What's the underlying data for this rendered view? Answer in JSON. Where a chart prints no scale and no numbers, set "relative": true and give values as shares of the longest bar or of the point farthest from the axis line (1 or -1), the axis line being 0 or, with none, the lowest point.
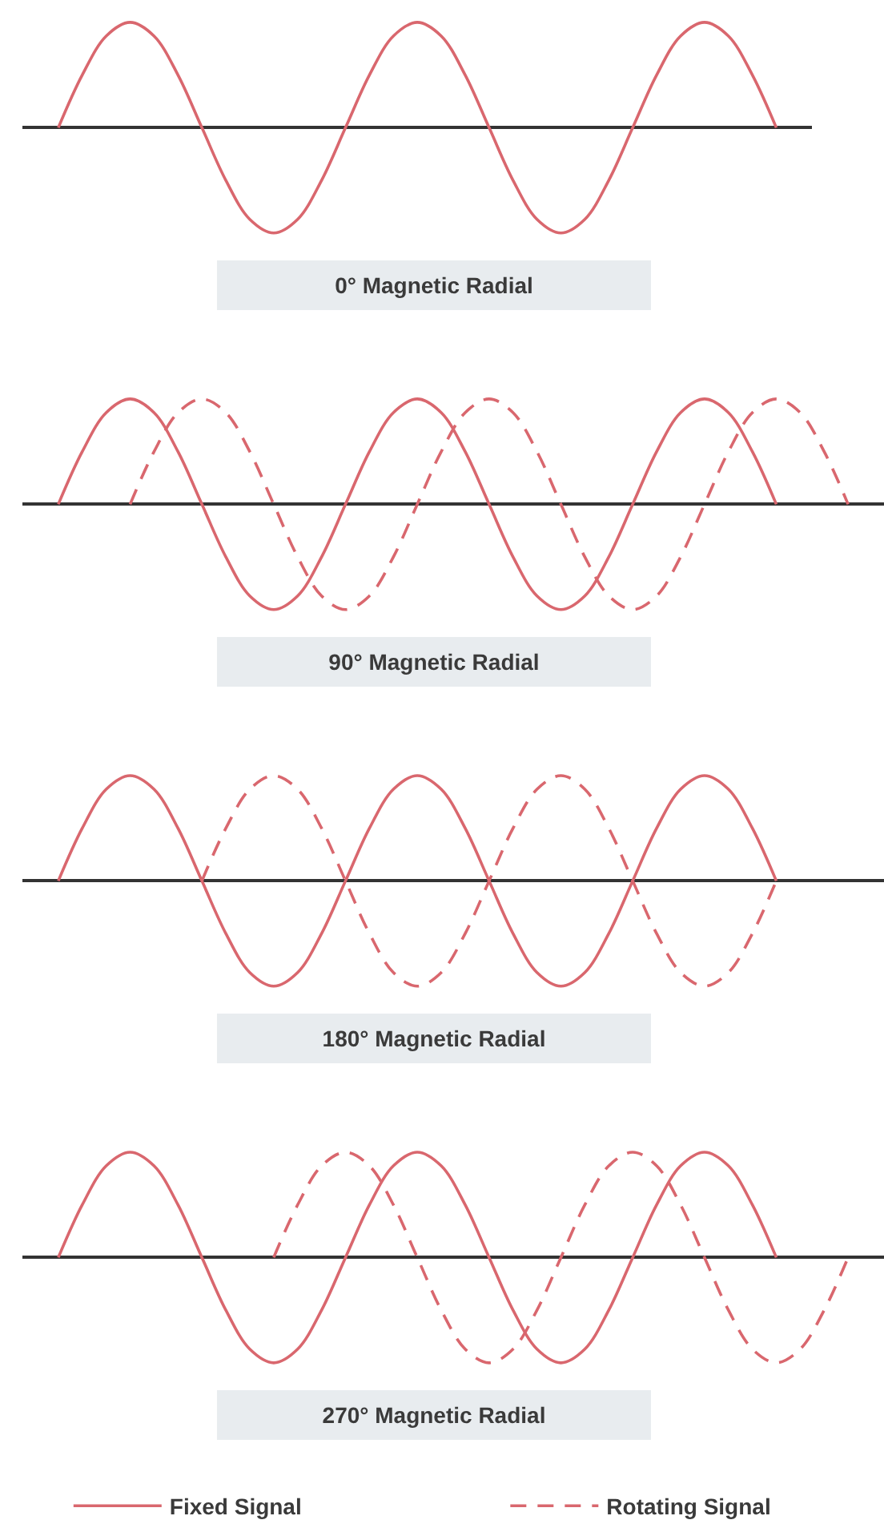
{
  "chart_data": [
    {
      "type": "line",
      "xlabel": "0° Magnetic Radial",
      "relative": true,
      "categories": [
        null,
        null,
        null,
        null,
        null,
        null,
        null,
        null,
        null,
        null,
        null,
        null,
        null,
        null,
        null,
        null,
        null,
        null,
        null,
        null,
        null,
        null,
        null,
        null,
        null,
        null,
        null,
        null,
        null,
        null,
        null
      ],
      "series": [
        {
          "color": "#d9676e",
          "line_style": "solid",
          "values": [
            0,
            0.5,
            0.87,
            1,
            0.87,
            0.5,
            0,
            -0.5,
            -0.87,
            -1,
            -0.87,
            -0.5,
            0,
            0.5,
            0.87,
            1,
            0.87,
            0.5,
            0,
            -0.5,
            -0.87,
            -1,
            -0.87,
            -0.5,
            0,
            0.5,
            0.87,
            1,
            0.87,
            0.5,
            0
          ]
        }
      ]
    },
    {
      "type": "line",
      "xlabel": "90° Magnetic Radial",
      "relative": true,
      "categories": [
        null,
        null,
        null,
        null,
        null,
        null,
        null,
        null,
        null,
        null,
        null,
        null,
        null,
        null,
        null,
        null,
        null,
        null,
        null,
        null,
        null,
        null,
        null,
        null,
        null,
        null,
        null,
        null,
        null,
        null,
        null,
        null,
        null,
        null
      ],
      "series": [
        {
          "color": "#d9676e",
          "line_style": "solid",
          "values": [
            0,
            0.5,
            0.87,
            1,
            0.87,
            0.5,
            0,
            -0.5,
            -0.87,
            -1,
            -0.87,
            -0.5,
            0,
            0.5,
            0.87,
            1,
            0.87,
            0.5,
            0,
            -0.5,
            -0.87,
            -1,
            -0.87,
            -0.5,
            0,
            0.5,
            0.87,
            1,
            0.87,
            0.5,
            0,
            null,
            null,
            null
          ]
        },
        {
          "color": "#d9676e",
          "line_style": "dashed",
          "values": [
            null,
            null,
            null,
            0,
            0.5,
            0.87,
            1,
            0.87,
            0.5,
            0,
            -0.5,
            -0.87,
            -1,
            -0.87,
            -0.5,
            0,
            0.5,
            0.87,
            1,
            0.87,
            0.5,
            0,
            -0.5,
            -0.87,
            -1,
            -0.87,
            -0.5,
            0,
            0.5,
            0.87,
            1,
            0.87,
            0.5,
            0
          ]
        }
      ]
    },
    {
      "type": "line",
      "xlabel": "180° Magnetic Radial",
      "relative": true,
      "categories": [
        null,
        null,
        null,
        null,
        null,
        null,
        null,
        null,
        null,
        null,
        null,
        null,
        null,
        null,
        null,
        null,
        null,
        null,
        null,
        null,
        null,
        null,
        null,
        null,
        null,
        null,
        null,
        null,
        null,
        null,
        null,
        null,
        null,
        null
      ],
      "series": [
        {
          "color": "#d9676e",
          "line_style": "solid",
          "values": [
            0,
            0.5,
            0.87,
            1,
            0.87,
            0.5,
            0,
            -0.5,
            -0.87,
            -1,
            -0.87,
            -0.5,
            0,
            0.5,
            0.87,
            1,
            0.87,
            0.5,
            0,
            -0.5,
            -0.87,
            -1,
            -0.87,
            -0.5,
            0,
            0.5,
            0.87,
            1,
            0.87,
            0.5,
            0,
            null,
            null,
            null
          ]
        },
        {
          "color": "#d9676e",
          "line_style": "dashed",
          "values": [
            null,
            null,
            null,
            null,
            null,
            null,
            0,
            0.5,
            0.87,
            1,
            0.87,
            0.5,
            0,
            -0.5,
            -0.87,
            -1,
            -0.87,
            -0.5,
            0,
            0.5,
            0.87,
            1,
            0.87,
            0.5,
            0,
            -0.5,
            -0.87,
            -1,
            -0.87,
            -0.5,
            0,
            null,
            null,
            null
          ]
        }
      ]
    },
    {
      "type": "line",
      "xlabel": "270° Magnetic Radial",
      "relative": true,
      "legend": "bottom",
      "categories": [
        null,
        null,
        null,
        null,
        null,
        null,
        null,
        null,
        null,
        null,
        null,
        null,
        null,
        null,
        null,
        null,
        null,
        null,
        null,
        null,
        null,
        null,
        null,
        null,
        null,
        null,
        null,
        null,
        null,
        null,
        null,
        null,
        null,
        null
      ],
      "series": [
        {
          "name": "Fixed Signal",
          "color": "#d9676e",
          "line_style": "solid",
          "values": [
            0,
            0.5,
            0.87,
            1,
            0.87,
            0.5,
            0,
            -0.5,
            -0.87,
            -1,
            -0.87,
            -0.5,
            0,
            0.5,
            0.87,
            1,
            0.87,
            0.5,
            0,
            -0.5,
            -0.87,
            -1,
            -0.87,
            -0.5,
            0,
            0.5,
            0.87,
            1,
            0.87,
            0.5,
            0,
            null,
            null,
            null
          ]
        },
        {
          "name": "Rotating Signal",
          "color": "#d9676e",
          "line_style": "dashed",
          "values": [
            null,
            null,
            null,
            null,
            null,
            null,
            null,
            null,
            null,
            0,
            0.5,
            0.87,
            1,
            0.87,
            0.5,
            0,
            -0.5,
            -0.87,
            -1,
            -0.87,
            -0.5,
            0,
            0.5,
            0.87,
            1,
            0.87,
            0.5,
            0,
            -0.5,
            -0.87,
            -1,
            -0.87,
            -0.5,
            0
          ]
        }
      ]
    }
  ]
}
